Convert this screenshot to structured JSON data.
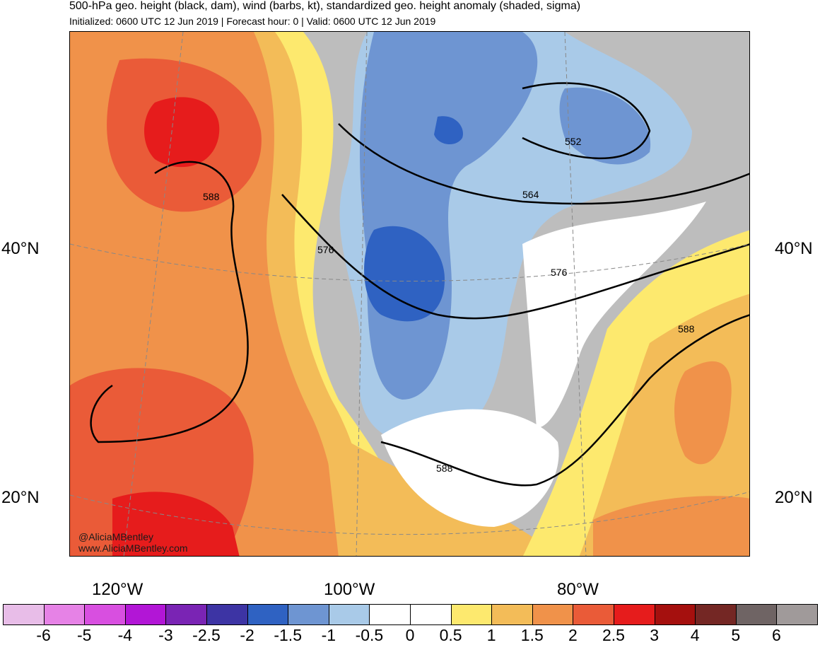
{
  "title": "500-hPa geo. height (black, dam), wind (barbs, kt), standardized geo. height anomaly (shaded, sigma)",
  "subtitle": "Initialized: 0600 UTC 12 Jun 2019 | Forecast hour: 0 | Valid: 0600 UTC 12 Jun 2019",
  "lat_labels": [
    "40°N",
    "20°N"
  ],
  "lon_labels": [
    "120°W",
    "100°W",
    "80°W"
  ],
  "contour_labels": [
    "552",
    "564",
    "576",
    "576",
    "588",
    "588",
    "588"
  ],
  "credit": [
    "@AliciaMBentley",
    "www.AliciaMBentley.com"
  ],
  "colorbar": {
    "colors": [
      "#e8bde8",
      "#e682e6",
      "#d84fe0",
      "#b216d6",
      "#7a24b4",
      "#3d34a4",
      "#2f62c2",
      "#6e95d2",
      "#a9cae8",
      "#ffffff",
      "#ffffff",
      "#fde96e",
      "#f3bc58",
      "#f0924a",
      "#ea5b38",
      "#e61c1c",
      "#a5100e",
      "#742724",
      "#6f6464",
      "#a09a9a"
    ],
    "tick_labels": [
      "-6",
      "-5",
      "-4",
      "-3",
      "-2.5",
      "-2",
      "-1.5",
      "-1",
      "-0.5",
      "0",
      "0.5",
      "1",
      "1.5",
      "2",
      "2.5",
      "3",
      "4",
      "5",
      "6"
    ]
  },
  "anomaly_colors": {
    "neutral": "#bdbdbd",
    "neg_strong": "#2f62c2",
    "neg_mid": "#6e95d2",
    "neg_weak": "#a9cae8",
    "pos_weak": "#fde96e",
    "pos_low": "#f3bc58",
    "pos_mid": "#f0924a",
    "pos_high": "#ea5b38",
    "pos_peak": "#e61c1c"
  }
}
